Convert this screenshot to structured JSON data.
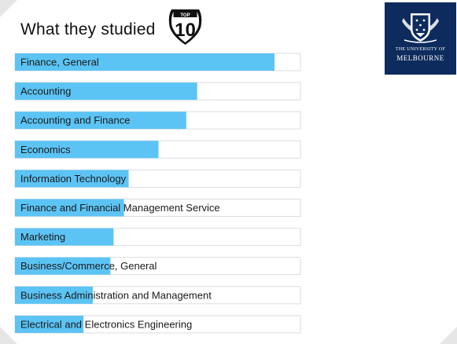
{
  "header": {
    "title": "What they studied",
    "badge_top": "TOP",
    "badge_number": "10"
  },
  "logo": {
    "line1": "THE UNIVERSITY OF",
    "line2": "MELBOURNE"
  },
  "colors": {
    "bar_fill": "#5cc4f5",
    "track_border": "#dcdcdc",
    "logo_bg": "#0d2b5c"
  },
  "chart_data": {
    "type": "bar",
    "orientation": "horizontal",
    "title": "What they studied",
    "categories": [
      "Finance, General",
      "Accounting",
      "Accounting and Finance",
      "Economics",
      "Information Technology",
      "Finance and Financial Management Service",
      "Marketing",
      "Business/Commerce, General",
      "Business Administration and Management",
      "Electrical and Electronics Engineering"
    ],
    "values": [
      100,
      70.2,
      66,
      55.3,
      43.8,
      42,
      38,
      36.8,
      30,
      26.4
    ],
    "xlim": [
      0,
      110
    ],
    "grid": false,
    "legend": "none"
  }
}
